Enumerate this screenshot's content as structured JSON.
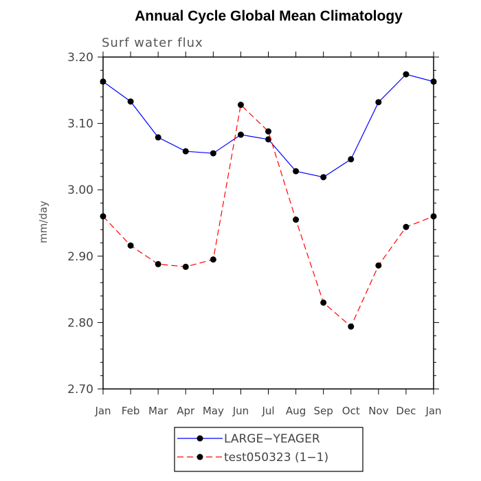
{
  "chart_data": {
    "type": "line",
    "title": "Annual Cycle Global Mean Climatology",
    "subtitle": "Surf water flux",
    "xlabel": "",
    "ylabel": "mm/day",
    "ylim": [
      2.7,
      3.2
    ],
    "yticks": [
      "2.70",
      "2.80",
      "2.90",
      "3.00",
      "3.10",
      "3.20"
    ],
    "categories": [
      "Jan",
      "Feb",
      "Mar",
      "Apr",
      "May",
      "Jun",
      "Jul",
      "Aug",
      "Sep",
      "Oct",
      "Nov",
      "Dec",
      "Jan"
    ],
    "series": [
      {
        "name": "LARGE−YEAGER",
        "color": "#0000ff",
        "dashed": false,
        "values": [
          3.163,
          3.133,
          3.079,
          3.058,
          3.055,
          3.083,
          3.076,
          3.028,
          3.019,
          3.046,
          3.132,
          3.174,
          3.163
        ]
      },
      {
        "name": "test050323 (1−1)",
        "color": "#ff0000",
        "dashed": true,
        "values": [
          2.96,
          2.916,
          2.888,
          2.884,
          2.895,
          3.128,
          3.088,
          2.955,
          2.83,
          2.794,
          2.886,
          2.944,
          2.96
        ]
      }
    ],
    "legend_position": "bottom-center"
  }
}
